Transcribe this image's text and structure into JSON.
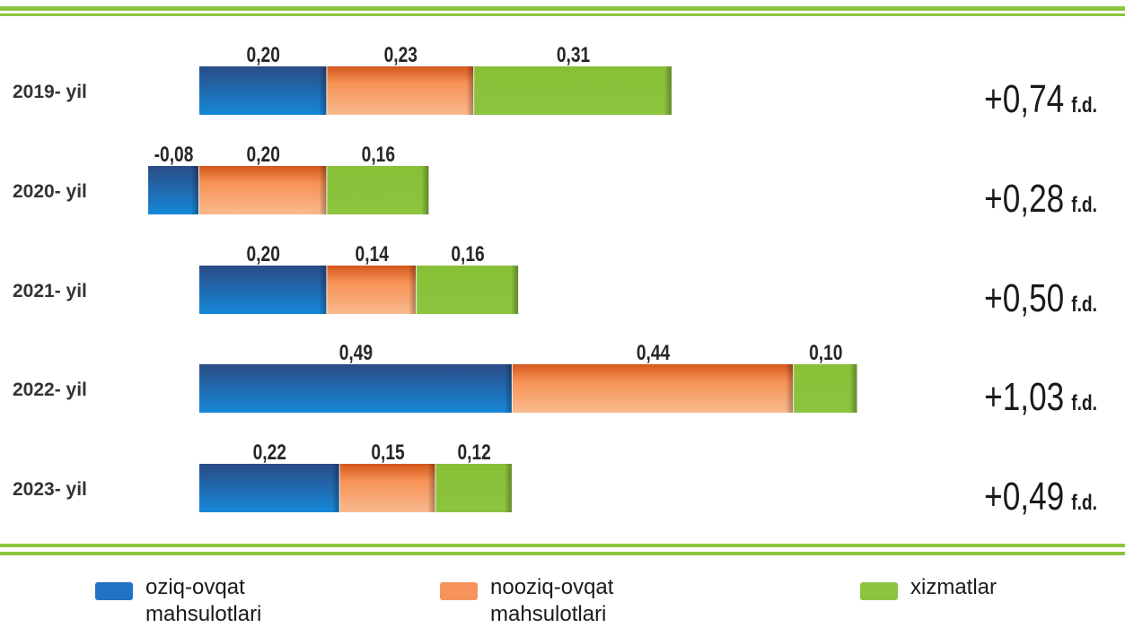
{
  "chart_data": {
    "type": "bar",
    "orientation": "horizontal",
    "stacked": true,
    "categories": [
      "2019- yil",
      "2020- yil",
      "2021- yil",
      "2022- yil",
      "2023- yil"
    ],
    "series": [
      {
        "name": "oziq-ovqat mahsulotlari",
        "values": [
          0.2,
          -0.08,
          0.2,
          0.49,
          0.22
        ],
        "labels": [
          "0,20",
          "-0,08",
          "0,20",
          "0,49",
          "0,22"
        ],
        "color": "#1f72c4"
      },
      {
        "name": "nooziq-ovqat mahsulotlari",
        "values": [
          0.23,
          0.2,
          0.14,
          0.44,
          0.15
        ],
        "labels": [
          "0,23",
          "0,20",
          "0,14",
          "0,44",
          "0,15"
        ],
        "color": "#f6945c"
      },
      {
        "name": "xizmatlar",
        "values": [
          0.31,
          0.16,
          0.16,
          0.1,
          0.12
        ],
        "labels": [
          "0,31",
          "0,16",
          "0,16",
          "0,10",
          "0,12"
        ],
        "color": "#8cc43f"
      }
    ],
    "totals": [
      "+0,74",
      "+0,28",
      "+0,50",
      "+1,03",
      "+0,49"
    ],
    "total_unit": "f.d.",
    "legend_position": "bottom"
  },
  "legend": {
    "items": [
      {
        "line1": "oziq-ovqat",
        "line2": "mahsulotlari"
      },
      {
        "line1": "nooziq-ovqat",
        "line2": "mahsulotlari"
      },
      {
        "line1": "xizmatlar",
        "line2": ""
      }
    ]
  }
}
